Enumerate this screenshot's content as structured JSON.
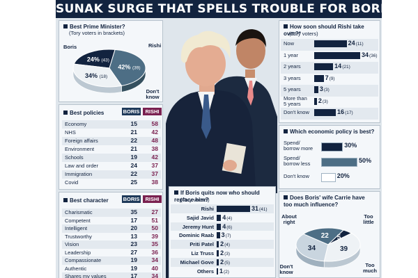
{
  "headline": "SUNAK SURGE THAT SPELLS TROUBLE FOR BORIS",
  "colors": {
    "dark": "#12233f",
    "mid": "#4d6e85",
    "light": "#c9d5df",
    "rishi": "#7a2150",
    "boris": "#1f3a5a"
  },
  "chart_data": [
    {
      "type": "pie",
      "title": "Best Prime Minister?",
      "subtitle": "(Tory voters in brackets)",
      "slices": [
        {
          "label": "Boris",
          "value": 24,
          "display": "24%",
          "bracket": "(43)"
        },
        {
          "label": "Rishi",
          "value": 42,
          "display": "42%",
          "bracket": "(39)"
        },
        {
          "label": "Don't know",
          "value": 34,
          "display": "34%",
          "bracket": "(18)"
        }
      ]
    },
    {
      "type": "table",
      "title": "Best policies",
      "columns": [
        "BORIS",
        "RISHI"
      ],
      "rows": [
        {
          "label": "Economy",
          "boris": 15,
          "rishi": 58
        },
        {
          "label": "NHS",
          "boris": 21,
          "rishi": 42
        },
        {
          "label": "Foreign affairs",
          "boris": 22,
          "rishi": 48
        },
        {
          "label": "Environment",
          "boris": 21,
          "rishi": 38
        },
        {
          "label": "Schools",
          "boris": 19,
          "rishi": 42
        },
        {
          "label": "Law and order",
          "boris": 24,
          "rishi": 37
        },
        {
          "label": "Immigration",
          "boris": 22,
          "rishi": 37
        },
        {
          "label": "Covid",
          "boris": 25,
          "rishi": 38
        }
      ]
    },
    {
      "type": "table",
      "title": "Best character",
      "columns": [
        "BORIS",
        "RISHI"
      ],
      "rows": [
        {
          "label": "Charismatic",
          "boris": 35,
          "rishi": 27
        },
        {
          "label": "Competent",
          "boris": 17,
          "rishi": 51
        },
        {
          "label": "Intelligent",
          "boris": 20,
          "rishi": 50
        },
        {
          "label": "Trustworthy",
          "boris": 13,
          "rishi": 39
        },
        {
          "label": "Vision",
          "boris": 23,
          "rishi": 35
        },
        {
          "label": "Leadership",
          "boris": 27,
          "rishi": 36
        },
        {
          "label": "Compassionate",
          "boris": 19,
          "rishi": 34
        },
        {
          "label": "Authentic",
          "boris": 19,
          "rishi": 40
        },
        {
          "label": "Shares my values",
          "boris": 17,
          "rishi": 34
        }
      ]
    },
    {
      "type": "bar",
      "title": "How soon should Rishi take over?*",
      "subtitle": "(Tory voters)",
      "categories": [
        "Now",
        "1 year",
        "2 years",
        "3 years",
        "5 years",
        "More than 5 years",
        "Don't know"
      ],
      "values": [
        24,
        34,
        14,
        7,
        3,
        2,
        16
      ],
      "brackets": [
        "(11)",
        "(36)",
        "(21)",
        "(9)",
        "(3)",
        "(3)",
        "(17)"
      ]
    },
    {
      "type": "bar",
      "title": "Which economic policy is best?",
      "categories": [
        "Spend/ borrow more",
        "Spend/ borrow less",
        "Don't know"
      ],
      "values": [
        30,
        50,
        20
      ],
      "display": [
        "30%",
        "50%",
        "20%"
      ]
    },
    {
      "type": "bar",
      "title": "If Boris quits now who should replace him?",
      "subtitle": "(Tory voters)",
      "categories": [
        "Rishi",
        "Sajid Javid",
        "Jeremy Hunt",
        "Dominic Raab",
        "Priti Patel",
        "Liz Truss",
        "Michael Gove",
        "Others"
      ],
      "values": [
        31,
        4,
        4,
        3,
        2,
        2,
        2,
        1
      ],
      "brackets": [
        "(41)",
        "(4)",
        "(6)",
        "(7)",
        "(4)",
        "(3)",
        "(5)",
        "(2)"
      ]
    },
    {
      "type": "pie",
      "title": "Does Boris' wife Carrie have too much influence?",
      "slices": [
        {
          "label": "About right",
          "value": 22
        },
        {
          "label": "Too little",
          "value": 5
        },
        {
          "label": "Too much",
          "value": 39
        },
        {
          "label": "Don't know",
          "value": 34
        }
      ]
    }
  ]
}
